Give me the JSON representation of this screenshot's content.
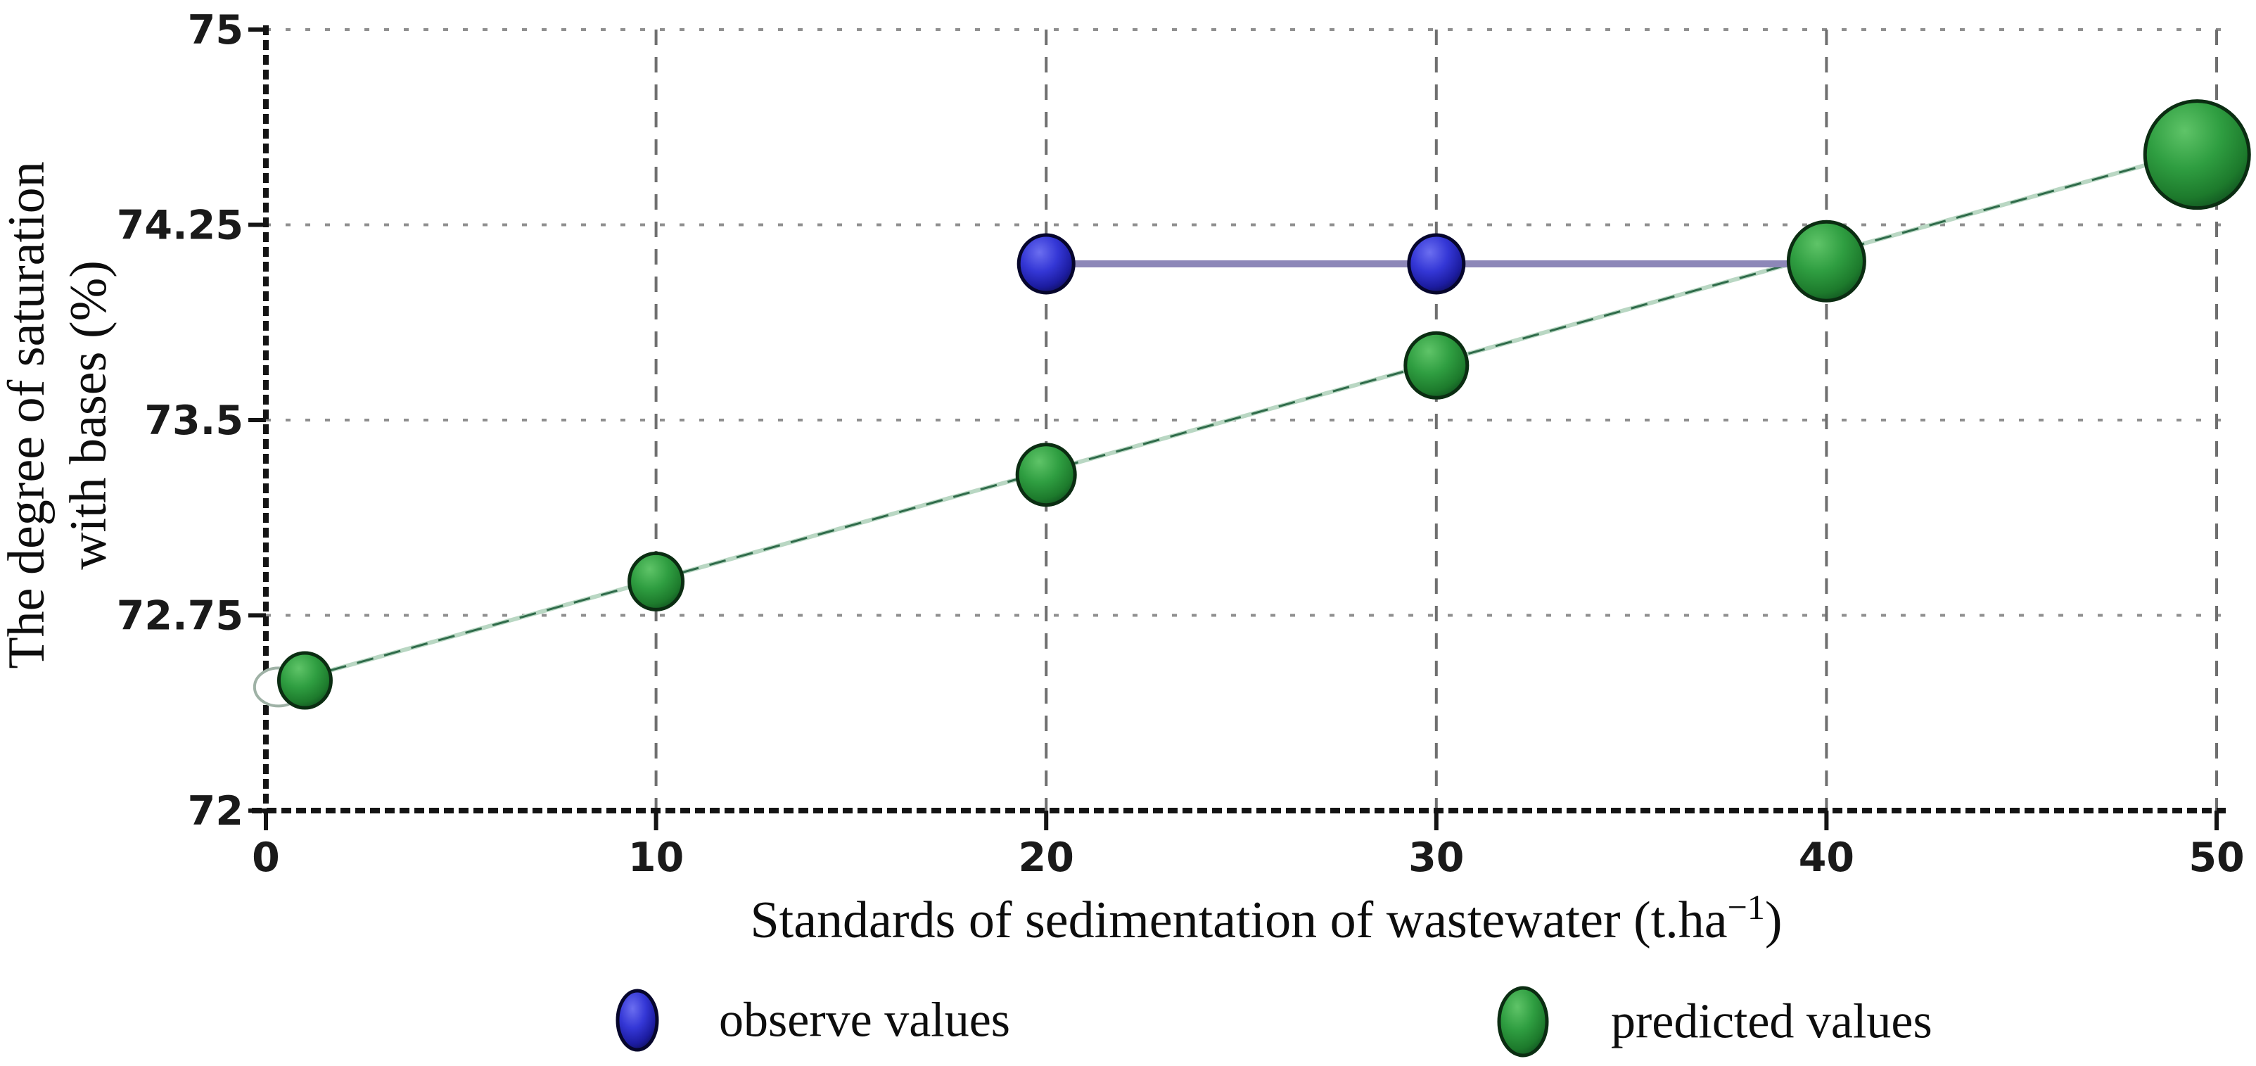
{
  "chart_data": {
    "type": "scatter",
    "title": "",
    "xlabel": "Standards of sedimentation of wastewater (t.ha−1)",
    "xlabel_parts": {
      "prefix": "Standards of sedimentation of wastewater (t.ha",
      "superscript": "−1",
      "suffix": ")"
    },
    "ylabel": "The degree of saturation with bases (%)",
    "ylabel_lines": [
      "The degree of saturation",
      "with bases (%)"
    ],
    "xlim": [
      0,
      50
    ],
    "ylim": [
      72,
      75
    ],
    "xticks": [
      0,
      10,
      20,
      30,
      40,
      50
    ],
    "xtick_labels": [
      "0",
      "10",
      "20",
      "30",
      "40",
      "50"
    ],
    "yticks": [
      72,
      72.75,
      73.5,
      74.25,
      75
    ],
    "ytick_labels": [
      "72",
      "72.75",
      "73.5",
      "74.25",
      "75"
    ],
    "grid": true,
    "legend_position": "bottom",
    "series": [
      {
        "name": "observe values",
        "marker_color": "#3136cf",
        "points": [
          {
            "x": 20,
            "y": 74.1,
            "size": 78
          },
          {
            "x": 30,
            "y": 74.1,
            "size": 78
          }
        ],
        "connector_line": {
          "y": 74.1,
          "x_start": 20,
          "x_end": 40,
          "color": "#8d87b8"
        }
      },
      {
        "name": "predicted values",
        "marker_color": "#2e9440",
        "points": [
          {
            "x": 1,
            "y": 72.5,
            "size": 74
          },
          {
            "x": 10,
            "y": 72.88,
            "size": 76
          },
          {
            "x": 20,
            "y": 73.29,
            "size": 82
          },
          {
            "x": 30,
            "y": 73.71,
            "size": 88
          },
          {
            "x": 40,
            "y": 74.11,
            "size": 108
          },
          {
            "x": 49.5,
            "y": 74.52,
            "size": 148
          }
        ],
        "trend_line": {
          "x1": 0.25,
          "y1": 72.48,
          "x2": 49.4,
          "y2": 74.53,
          "color": "#2f6b4a"
        }
      }
    ],
    "legend": [
      {
        "label": "observe values",
        "color": "#3136cf"
      },
      {
        "label": "predicted values",
        "color": "#2e9440"
      }
    ]
  }
}
